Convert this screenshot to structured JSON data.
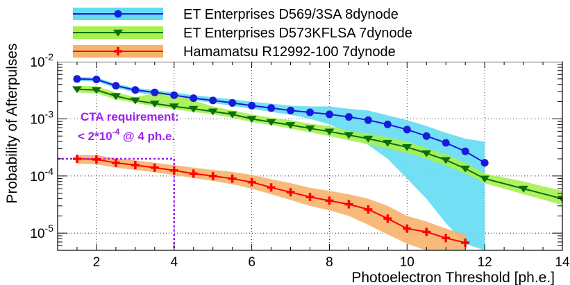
{
  "chart_data": {
    "type": "line",
    "title": "",
    "xlabel": "Photoelectron Threshold [ph.e.]",
    "ylabel": "Probability of Afterpulses",
    "xlim": [
      1.0,
      14.0
    ],
    "ylim": [
      5e-06,
      0.01
    ],
    "yscale": "log",
    "grid": true,
    "legend_position": "top",
    "x_ticks": [
      2,
      4,
      6,
      8,
      10,
      12,
      14
    ],
    "x_tick_labels": [
      "2",
      "4",
      "6",
      "8",
      "10",
      "12",
      "14"
    ],
    "y_ticks": [
      1e-05,
      0.0001,
      0.001,
      0.01
    ],
    "y_tick_labels": [
      {
        "base": "10",
        "exp": "-5"
      },
      {
        "base": "10",
        "exp": "-4"
      },
      {
        "base": "10",
        "exp": "-3"
      },
      {
        "base": "10",
        "exp": "-2"
      }
    ],
    "series": [
      {
        "name": "ET Enterprises D569/3SA 8dynode",
        "color": "#1a1adb",
        "band_color": "#63dcf3",
        "marker": "circle",
        "x": [
          1.5,
          2.0,
          2.5,
          3.0,
          3.5,
          4.0,
          4.5,
          5.0,
          5.5,
          6.0,
          6.5,
          7.0,
          7.5,
          8.0,
          8.5,
          9.0,
          9.5,
          10.0,
          10.5,
          11.0,
          11.5,
          12.0
        ],
        "values": [
          0.005,
          0.0049,
          0.0038,
          0.0032,
          0.0029,
          0.0026,
          0.0023,
          0.0021,
          0.0019,
          0.0017,
          0.00155,
          0.0014,
          0.0013,
          0.0012,
          0.00108,
          0.00095,
          0.0008,
          0.00065,
          0.0005,
          0.00038,
          0.00027,
          0.00017
        ],
        "band_lower": [
          0.0046,
          0.0045,
          0.0035,
          0.0029,
          0.0026,
          0.0023,
          0.0021,
          0.0019,
          0.00168,
          0.0015,
          0.00132,
          0.00118,
          0.001,
          0.0008,
          0.00055,
          0.00035,
          0.0002,
          9e-05,
          4e-05,
          1.5e-05,
          6.5e-06,
          5e-06
        ],
        "band_upper": [
          0.0054,
          0.0053,
          0.0041,
          0.0035,
          0.0032,
          0.0029,
          0.0026,
          0.0024,
          0.0022,
          0.002,
          0.00185,
          0.0017,
          0.00165,
          0.00165,
          0.0015,
          0.0014,
          0.00115,
          0.00095,
          0.00075,
          0.00057,
          0.00045,
          0.0004
        ]
      },
      {
        "name": "ET Enterprises D573KFLSA 7dynode",
        "color": "#0a6e0a",
        "band_color": "#a6f050",
        "marker": "triangle-down",
        "x": [
          1.5,
          2.0,
          2.5,
          3.0,
          3.5,
          4.0,
          4.5,
          5.0,
          5.5,
          6.0,
          6.5,
          7.0,
          7.5,
          8.0,
          8.5,
          9.0,
          9.5,
          10.0,
          10.5,
          11.0,
          11.5,
          12.0,
          13.0,
          14.0
        ],
        "values": [
          0.0033,
          0.0032,
          0.0025,
          0.0021,
          0.00185,
          0.00165,
          0.0015,
          0.00135,
          0.0012,
          0.001,
          0.00088,
          0.00078,
          0.00068,
          0.0006,
          0.00052,
          0.00045,
          0.00038,
          0.00032,
          0.00025,
          0.00019,
          0.000135,
          9e-05,
          6e-05,
          4e-05
        ],
        "band_lower": [
          0.0029,
          0.0028,
          0.0022,
          0.0019,
          0.00165,
          0.00148,
          0.00132,
          0.0012,
          0.00105,
          0.00088,
          0.00078,
          0.00068,
          0.00058,
          0.0005,
          0.00042,
          0.00036,
          0.0003,
          0.00025,
          0.0002,
          0.00015,
          0.00011,
          7.5e-05,
          4.8e-05,
          3.1e-05
        ],
        "band_upper": [
          0.0038,
          0.0037,
          0.0029,
          0.0024,
          0.0028,
          0.0027,
          0.0021,
          0.00165,
          0.0014,
          0.0012,
          0.00105,
          0.00095,
          0.00082,
          0.00075,
          0.00062,
          0.00055,
          0.00048,
          0.0004,
          0.00031,
          0.00024,
          0.00017,
          0.00011,
          8e-05,
          5.5e-05
        ]
      },
      {
        "name": "Hamamatsu R12992-100 7dynode",
        "color": "#ff0000",
        "band_color": "#f7b36b",
        "marker": "plus",
        "x": [
          1.5,
          2.0,
          2.5,
          3.0,
          3.5,
          4.0,
          4.5,
          5.0,
          5.5,
          6.0,
          6.5,
          7.0,
          7.5,
          8.0,
          8.5,
          9.0,
          9.5,
          10.0,
          10.5,
          11.0,
          11.5
        ],
        "values": [
          0.0002,
          0.000195,
          0.00017,
          0.000155,
          0.00014,
          0.000125,
          0.00011,
          0.0001,
          9e-05,
          7.8e-05,
          6.3e-05,
          5.2e-05,
          4.3e-05,
          3.7e-05,
          3.2e-05,
          2.6e-05,
          1.8e-05,
          1.2e-05,
          1.05e-05,
          8.2e-06,
          6.8e-06
        ],
        "band_lower": [
          0.000165,
          0.00016,
          0.00014,
          0.000128,
          0.000116,
          0.000104,
          9.2e-05,
          8.2e-05,
          7.2e-05,
          6e-05,
          4.8e-05,
          3.8e-05,
          3e-05,
          2.5e-05,
          2e-05,
          1.4e-05,
          9.5e-06,
          6.5e-06,
          5e-06,
          5e-06,
          5e-06
        ],
        "band_upper": [
          0.000235,
          0.000232,
          0.000205,
          0.000188,
          0.00017,
          0.000155,
          0.00014,
          0.000128,
          0.000118,
          0.000105,
          8.8e-05,
          7.5e-05,
          6.2e-05,
          5.5e-05,
          4.8e-05,
          4e-05,
          3e-05,
          2e-05,
          1.6e-05,
          1.2e-05,
          9.5e-06
        ]
      }
    ],
    "annotation": {
      "text_line1": "CTA requirement:",
      "text_line2_prefix": "< 2*10",
      "text_line2_exp": "-4",
      "text_line2_suffix": " @ 4 ph.e.",
      "color": "#a020f0",
      "point": {
        "x": 4,
        "y": 0.0002
      }
    }
  }
}
